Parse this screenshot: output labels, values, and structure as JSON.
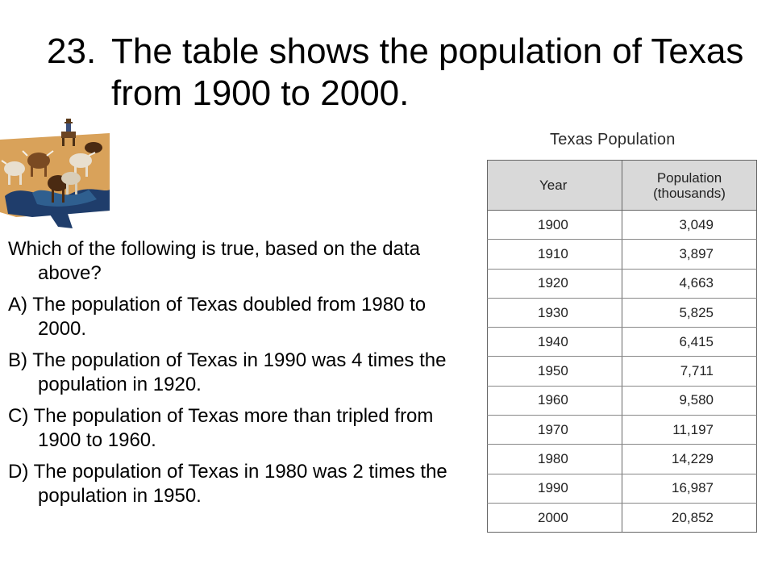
{
  "slide": {
    "number": "23.",
    "title": "The table shows the population of Texas from 1900 to 2000."
  },
  "question": {
    "prompt": "Which of the following is true, based on the data above?",
    "options": [
      {
        "letter": "A)",
        "text": "The population of Texas doubled from 1980 to 2000."
      },
      {
        "letter": "B)",
        "text": "The population of Texas in 1990 was 4 times the population in 1920."
      },
      {
        "letter": "C)",
        "text": "The population of Texas more than tripled from 1900 to 1960."
      },
      {
        "letter": "D)",
        "text": "The population of Texas in 1980 was 2 times the population in 1950."
      }
    ]
  },
  "table": {
    "title": "Texas Population",
    "headers": [
      "Year",
      "Population (thousands)"
    ],
    "rows": [
      [
        "1900",
        "3,049"
      ],
      [
        "1910",
        "3,897"
      ],
      [
        "1920",
        "4,663"
      ],
      [
        "1930",
        "5,825"
      ],
      [
        "1940",
        "6,415"
      ],
      [
        "1950",
        "7,711"
      ],
      [
        "1960",
        "9,580"
      ],
      [
        "1970",
        "11,197"
      ],
      [
        "1980",
        "14,229"
      ],
      [
        "1990",
        "16,987"
      ],
      [
        "2000",
        "20,852"
      ]
    ]
  },
  "clipart": {
    "icon": "cattle-drive-icon"
  }
}
